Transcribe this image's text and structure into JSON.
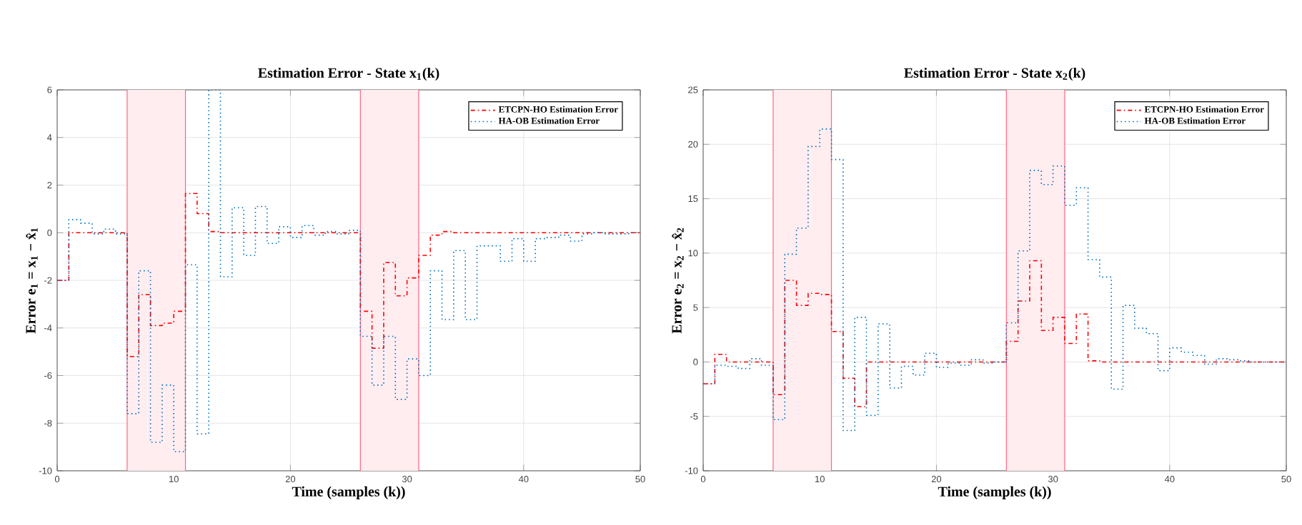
{
  "chart_data": [
    {
      "type": "step",
      "title": "Estimation Error - State x$_{1}$(k)",
      "xlabel": "Time (samples (k))",
      "ylabel": "Error e$_{1}$ = x$_{1}$ − x̂$_{1}$",
      "x": [
        0,
        1,
        2,
        3,
        4,
        5,
        6,
        7,
        8,
        9,
        10,
        11,
        12,
        13,
        14,
        15,
        16,
        17,
        18,
        19,
        20,
        21,
        22,
        23,
        24,
        25,
        26,
        27,
        28,
        29,
        30,
        31,
        32,
        33,
        34,
        35,
        36,
        37,
        38,
        39,
        40,
        41,
        42,
        43,
        44,
        45,
        46,
        47,
        48,
        49,
        50
      ],
      "xlim": [
        0,
        50
      ],
      "xticks": [
        0,
        10,
        20,
        30,
        40,
        50
      ],
      "ylim": [
        -10,
        6
      ],
      "yticks": [
        -10,
        -8,
        -6,
        -4,
        -2,
        0,
        2,
        4,
        6
      ],
      "grid": true,
      "legend": "top right",
      "bands": [
        {
          "axis": "x",
          "from": 6,
          "to": 11,
          "color": "#ffedf0"
        },
        {
          "axis": "x",
          "from": 26,
          "to": 31,
          "color": "#ffedf0"
        }
      ],
      "ref_lines": [
        {
          "axis": "x",
          "value": 6,
          "color": "#ff6680"
        },
        {
          "axis": "x",
          "value": 11,
          "color": "#ff6680"
        },
        {
          "axis": "x",
          "value": 26,
          "color": "#ff6680"
        },
        {
          "axis": "x",
          "value": 31,
          "color": "#ff6680"
        }
      ],
      "series": [
        {
          "name": "ETCPN-HO Estimation Error",
          "color": "#ff0000",
          "line_style": "dashdot",
          "values": [
            -2,
            0,
            0,
            0,
            0,
            0,
            -5.2,
            -2.6,
            -3.9,
            -3.8,
            -3.3,
            1.65,
            0.8,
            0.05,
            0,
            0,
            0,
            0,
            0,
            0,
            0,
            0,
            0,
            0,
            0,
            0,
            -3.3,
            -4.85,
            -1.25,
            -2.65,
            -1.9,
            -0.95,
            -0.1,
            0.05,
            0,
            0,
            0,
            0,
            0,
            0,
            0,
            0,
            0,
            0,
            0,
            0,
            0,
            0,
            0,
            0,
            0
          ]
        },
        {
          "name": "HA-OB Estimation Error",
          "color": "#0072bd",
          "line_style": "dotted",
          "values": [
            -2,
            0.55,
            0.4,
            -0.05,
            0.15,
            -0.05,
            -7.6,
            -1.6,
            -8.8,
            -6.4,
            -9.2,
            -1.35,
            -8.45,
            6,
            -1.85,
            1.05,
            -0.95,
            1.1,
            -0.45,
            0.25,
            -0.2,
            0.3,
            -0.1,
            0.05,
            -0.05,
            0.1,
            -4.35,
            -6.4,
            -4.35,
            -7,
            -5.3,
            -6,
            -1.6,
            -3.65,
            -0.75,
            -3.65,
            -0.55,
            -0.55,
            -1.2,
            -0.25,
            -1.2,
            -0.25,
            -0.2,
            -0.1,
            -0.35,
            -0.05,
            0,
            -0.05,
            -0.05,
            0,
            0
          ]
        }
      ]
    },
    {
      "type": "step",
      "title": "Estimation Error - State x$_{2}$(k)",
      "xlabel": "Time (samples (k))",
      "ylabel": "Error e$_{2}$ = x$_{2}$ − x̂$_{2}$",
      "x": [
        0,
        1,
        2,
        3,
        4,
        5,
        6,
        7,
        8,
        9,
        10,
        11,
        12,
        13,
        14,
        15,
        16,
        17,
        18,
        19,
        20,
        21,
        22,
        23,
        24,
        25,
        26,
        27,
        28,
        29,
        30,
        31,
        32,
        33,
        34,
        35,
        36,
        37,
        38,
        39,
        40,
        41,
        42,
        43,
        44,
        45,
        46,
        47,
        48,
        49,
        50
      ],
      "xlim": [
        0,
        50
      ],
      "xticks": [
        0,
        10,
        20,
        30,
        40,
        50
      ],
      "ylim": [
        -10,
        25
      ],
      "yticks": [
        -10,
        -5,
        0,
        5,
        10,
        15,
        20,
        25
      ],
      "grid": true,
      "legend": "top right",
      "bands": [
        {
          "axis": "x",
          "from": 6,
          "to": 11,
          "color": "#ffedf0"
        },
        {
          "axis": "x",
          "from": 26,
          "to": 31,
          "color": "#ffedf0"
        }
      ],
      "ref_lines": [
        {
          "axis": "x",
          "value": 6,
          "color": "#ff6680"
        },
        {
          "axis": "x",
          "value": 11,
          "color": "#ff6680"
        },
        {
          "axis": "x",
          "value": 26,
          "color": "#ff6680"
        },
        {
          "axis": "x",
          "value": 31,
          "color": "#ff6680"
        }
      ],
      "series": [
        {
          "name": "ETCPN-HO Estimation Error",
          "color": "#ff0000",
          "line_style": "dashdot",
          "values": [
            -2,
            0.7,
            0,
            0,
            0,
            0,
            -3,
            7.5,
            5.2,
            6.3,
            6.2,
            2.8,
            -1.5,
            -4.1,
            0,
            0,
            0,
            0,
            0,
            0,
            0,
            0,
            0,
            0,
            0,
            0,
            1.9,
            5.6,
            9.3,
            2.9,
            4.1,
            1.7,
            4.4,
            0.1,
            0,
            0,
            0,
            0,
            0,
            0,
            0,
            0,
            0,
            0,
            0,
            0,
            0,
            0,
            0,
            0,
            0
          ]
        },
        {
          "name": "HA-OB Estimation Error",
          "color": "#0072bd",
          "line_style": "dotted",
          "values": [
            -2,
            -0.3,
            -0.4,
            -0.6,
            0.3,
            -0.3,
            -5.3,
            9.9,
            12.3,
            19.8,
            21.4,
            18.6,
            -6.3,
            4.1,
            -4.9,
            3.5,
            -2.4,
            -0.4,
            -1.2,
            0.8,
            -0.5,
            -0.1,
            -0.3,
            0.2,
            -0.1,
            0,
            3.6,
            10.2,
            17.6,
            16.3,
            18,
            14.4,
            16,
            9.4,
            7.8,
            -2.5,
            5.2,
            3.1,
            2.6,
            -0.8,
            1.3,
            0.9,
            0.6,
            -0.2,
            0.3,
            0.2,
            0.1,
            0,
            0,
            0,
            0
          ]
        }
      ]
    }
  ]
}
